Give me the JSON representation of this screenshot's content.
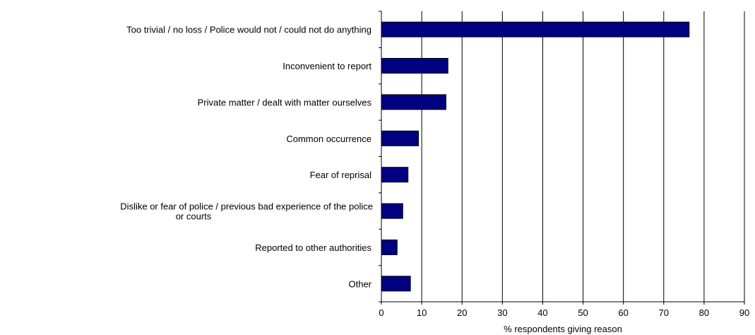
{
  "chart_data": {
    "type": "bar",
    "orientation": "horizontal",
    "categories": [
      [
        "Too trivial / no loss / Police would not / could not do anything"
      ],
      [
        "Inconvenient to report"
      ],
      [
        "Private matter / dealt with matter ourselves"
      ],
      [
        "Common occurrence"
      ],
      [
        "Fear of reprisal"
      ],
      [
        "Dislike or fear of police / previous bad experience of the police",
        "or courts"
      ],
      [
        "Reported to other authorities"
      ],
      [
        "Other"
      ]
    ],
    "values": [
      76.3,
      16.5,
      16.0,
      9.2,
      6.6,
      5.3,
      3.9,
      7.2
    ],
    "xlabel": "% respondents giving reason",
    "xlim": [
      0,
      90
    ],
    "xticks": [
      0,
      10,
      20,
      30,
      40,
      50,
      60,
      70,
      80,
      90
    ],
    "grid": "vertical",
    "legend": "none",
    "colors": {
      "bar_fill": "#000080",
      "bar_stroke": "#000000",
      "grid": "#000000"
    }
  }
}
